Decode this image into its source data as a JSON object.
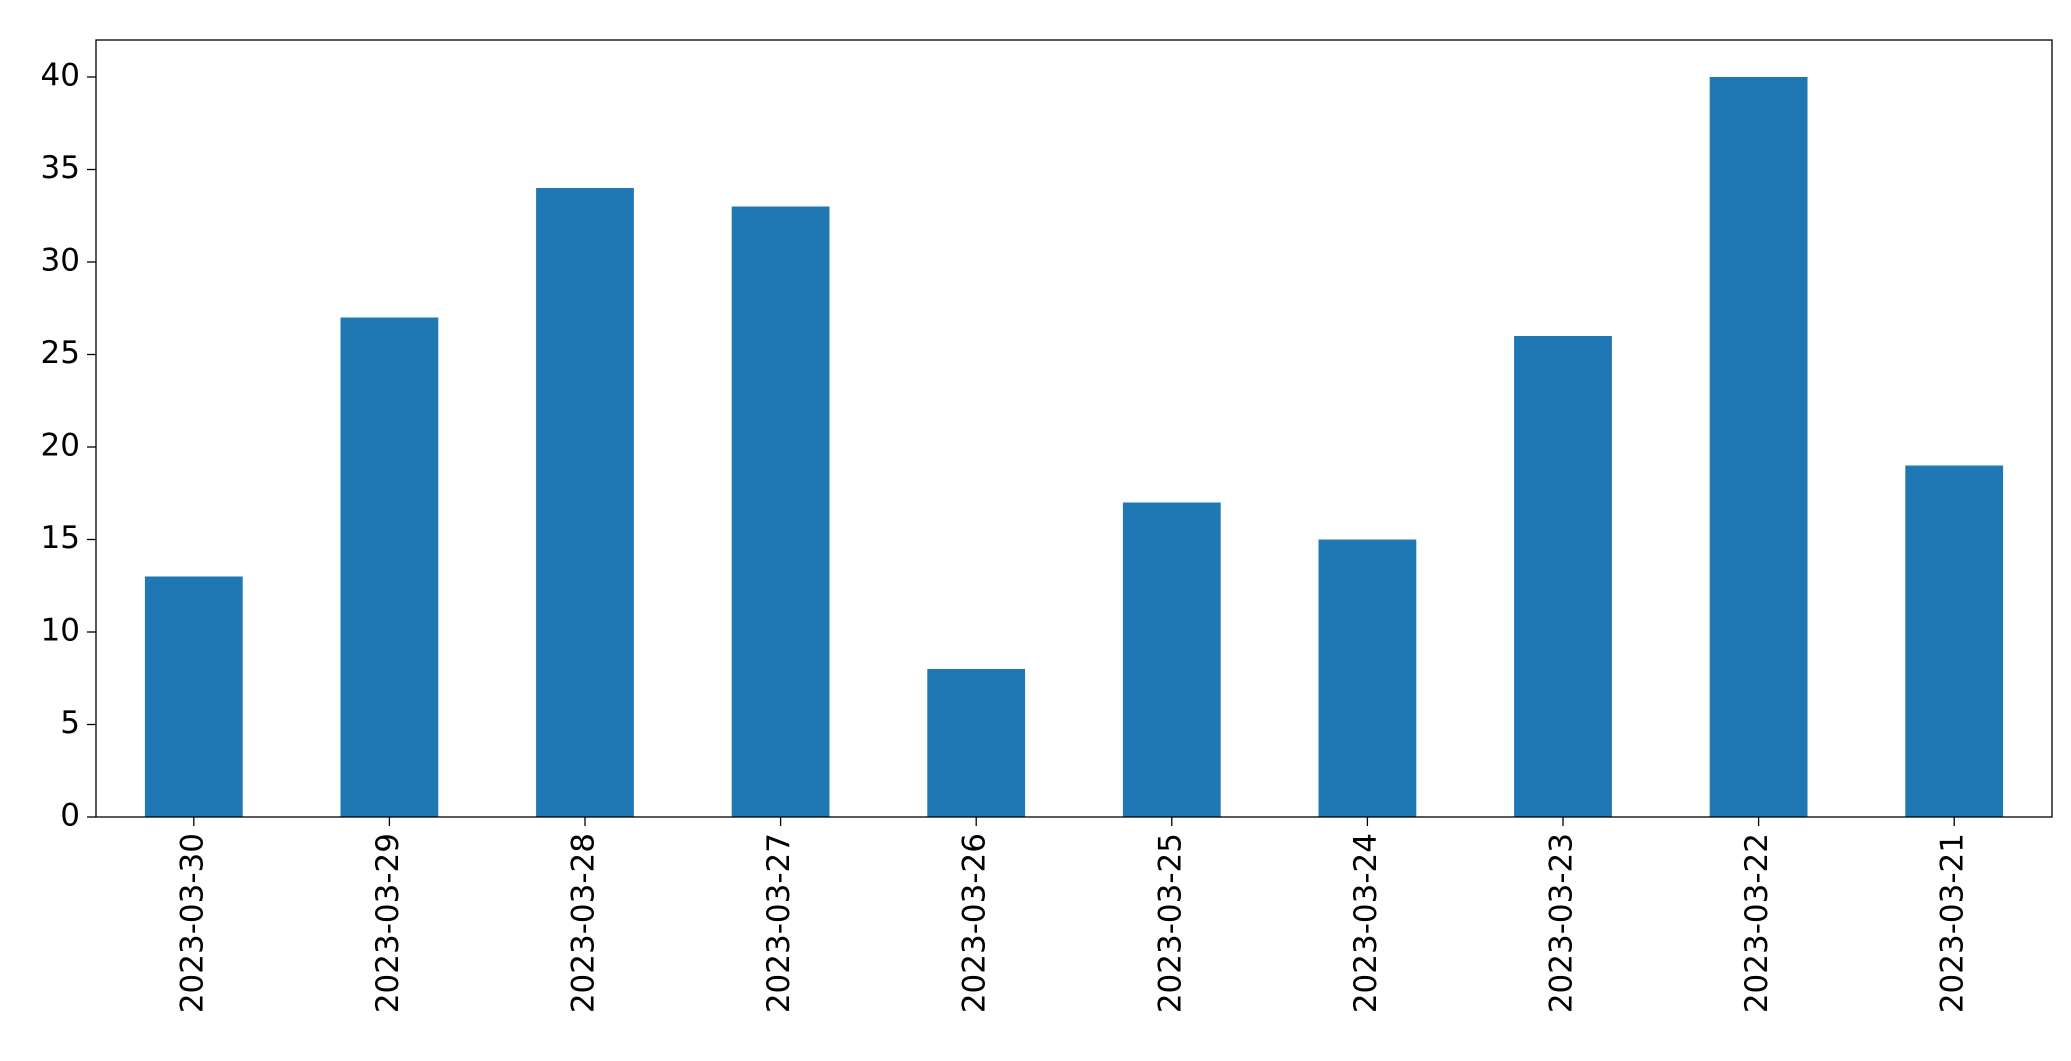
{
  "chart_data": {
    "type": "bar",
    "categories": [
      "2023-03-30",
      "2023-03-29",
      "2023-03-28",
      "2023-03-27",
      "2023-03-26",
      "2023-03-25",
      "2023-03-24",
      "2023-03-23",
      "2023-03-22",
      "2023-03-21"
    ],
    "values": [
      13,
      27,
      34,
      33,
      8,
      17,
      15,
      26,
      40,
      19
    ],
    "color": "#1f77b4",
    "ylim": [
      0,
      42
    ],
    "yticks": [
      0,
      5,
      10,
      15,
      20,
      25,
      30,
      35,
      40
    ],
    "grid": false
  }
}
